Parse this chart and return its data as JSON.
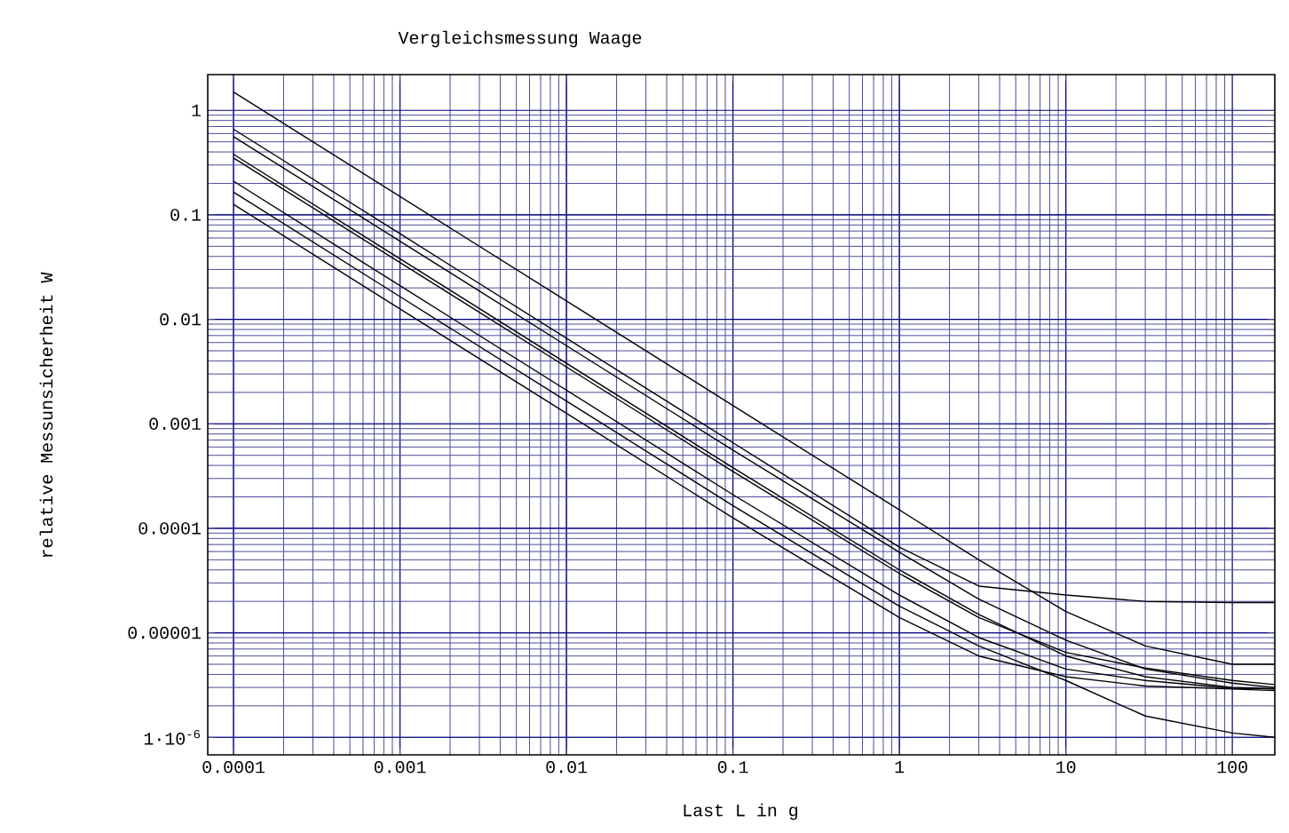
{
  "chart_data": {
    "type": "line",
    "title": "Vergleichsmessung Waage",
    "xlabel": "Last L in g",
    "ylabel": "relative Messunsicherheit W",
    "log": "xy",
    "grid": true,
    "marker": "none",
    "line_style": "solid",
    "x": [
      0.0001,
      0.001,
      0.01,
      0.1,
      1,
      3,
      10,
      30,
      100,
      180
    ],
    "xlim": [
      7e-05,
      180
    ],
    "ylim": [
      6.8e-07,
      2.2
    ],
    "xticks": [
      0.0001,
      0.001,
      0.01,
      0.1,
      1,
      10,
      100
    ],
    "yticks": [
      {
        "value": 1e-06,
        "label": "1·10$^{-6}$"
      },
      {
        "value": 1e-05,
        "label": "0.00001"
      },
      0.0001,
      0.001,
      0.01,
      0.1,
      1
    ],
    "series": [
      {
        "color": "#000000",
        "values": [
          1.5,
          0.15,
          0.015,
          0.0015,
          0.00015,
          5e-05,
          1.6e-05,
          7.5e-06,
          5e-06,
          5e-06
        ]
      },
      {
        "color": "#000000",
        "values": [
          0.66,
          0.066,
          0.0066,
          0.00066,
          6.6e-05,
          2.8e-05,
          2.3e-05,
          2e-05,
          1.95e-05,
          1.95e-05
        ]
      },
      {
        "color": "#000000",
        "values": [
          0.56,
          0.056,
          0.0056,
          0.00056,
          5.9e-05,
          2.1e-05,
          8.5e-06,
          4.5e-06,
          3.3e-06,
          3e-06
        ]
      },
      {
        "color": "#000000",
        "values": [
          0.38,
          0.038,
          0.0038,
          0.00038,
          4e-05,
          1.5e-05,
          6e-06,
          3.8e-06,
          3e-06,
          2.9e-06
        ]
      },
      {
        "color": "#000000",
        "values": [
          0.35,
          0.035,
          0.0035,
          0.00035,
          3.7e-05,
          1.4e-05,
          6.5e-06,
          4.6e-06,
          3.5e-06,
          3.2e-06
        ]
      },
      {
        "color": "#000000",
        "values": [
          0.21,
          0.021,
          0.0021,
          0.00021,
          2.3e-05,
          9e-06,
          4.5e-06,
          3.5e-06,
          2.95e-06,
          2.92e-06
        ]
      },
      {
        "color": "#000000",
        "values": [
          0.165,
          0.0165,
          0.00165,
          0.000165,
          1.8e-05,
          7.5e-06,
          3.5e-06,
          1.6e-06,
          1.1e-06,
          1e-06
        ]
      },
      {
        "color": "#000000",
        "values": [
          0.126,
          0.0126,
          0.00126,
          0.000126,
          1.4e-05,
          6e-06,
          3.8e-06,
          3.1e-06,
          2.9e-06,
          2.8e-06
        ]
      }
    ]
  }
}
